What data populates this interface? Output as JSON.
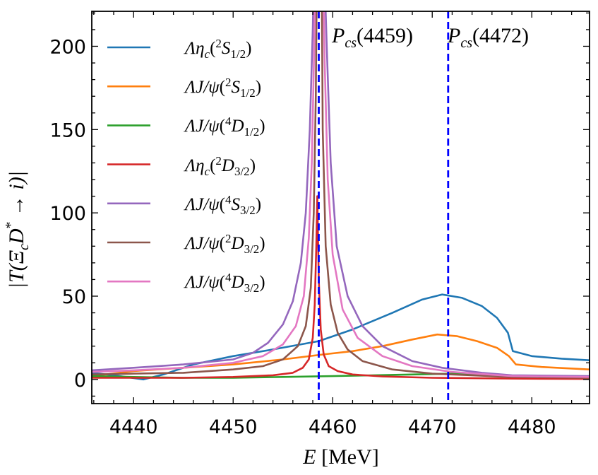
{
  "chart_data": {
    "type": "line",
    "xlabel": {
      "var": "E",
      "unit": "[MeV]"
    },
    "ylabel": {
      "pre": "|T(Ξ",
      "sub": "c",
      "mid": "D",
      "sup": "*",
      "post": " → i)|"
    },
    "xlim": [
      4435.8,
      4485.8
    ],
    "ylim": [
      -14.5,
      221
    ],
    "xticks": [
      4440,
      4450,
      4460,
      4470,
      4480
    ],
    "yticks": [
      0,
      50,
      100,
      150,
      200
    ],
    "xminor_step": 2,
    "yminor_step": 10,
    "legend_placement": "upper-left",
    "vlines": [
      {
        "x": 4458.6,
        "label": "P",
        "label_sub": "cs",
        "label_val": "(4459)",
        "color": "#0000ff"
      },
      {
        "x": 4471.6,
        "label": "P",
        "label_sub": "cs",
        "label_val": "(4472)",
        "color": "#0000ff"
      }
    ],
    "series": [
      {
        "name": "Λη_c(2S_1/2)",
        "base": "Λη",
        "base_sub": "c",
        "mult": "2",
        "L": "S",
        "J": "1/2",
        "color": "#1f77b4",
        "x": [
          4435.8,
          4438,
          4441,
          4443,
          4446,
          4450,
          4454,
          4458.6,
          4462,
          4466,
          4469,
          4471,
          4473,
          4475,
          4476.5,
          4477.6,
          4478.1,
          4480,
          4483,
          4485.8
        ],
        "y": [
          4,
          2.5,
          0,
          3,
          9,
          14,
          18,
          23,
          30,
          40,
          48,
          51,
          49,
          44,
          37,
          28,
          17,
          14,
          12.5,
          11.5
        ]
      },
      {
        "name": "ΛJ/ψ(2S_1/2)",
        "base": "ΛJ/ψ",
        "base_sub": "",
        "mult": "2",
        "L": "S",
        "J": "1/2",
        "color": "#ff7f0e",
        "x": [
          4435.8,
          4440,
          4445,
          4450,
          4455,
          4459,
          4462,
          4465,
          4468,
          4470.5,
          4472.5,
          4474.5,
          4476.5,
          4477.7,
          4478.4,
          4481,
          4485.8
        ],
        "y": [
          2,
          5,
          7,
          9,
          12,
          15,
          17,
          20,
          24,
          27,
          26,
          23,
          19,
          14,
          9,
          7.5,
          6
        ]
      },
      {
        "name": "ΛJ/ψ(4D_1/2)",
        "base": "ΛJ/ψ",
        "base_sub": "",
        "mult": "4",
        "L": "D",
        "J": "1/2",
        "color": "#2ca02c",
        "x": [
          4435.8,
          4440,
          4445,
          4450,
          4455,
          4460,
          4465,
          4468,
          4472,
          4475,
          4478,
          4482,
          4485.8
        ],
        "y": [
          2,
          1.5,
          1,
          1,
          1.5,
          2,
          2.6,
          3,
          3.5,
          3,
          2,
          1.3,
          1
        ]
      },
      {
        "name": "Λη_c(2D_3/2)",
        "base": "Λη",
        "base_sub": "c",
        "mult": "2",
        "L": "D",
        "J": "3/2",
        "color": "#d62728",
        "x": [
          4435.8,
          4445,
          4450,
          4454,
          4456,
          4457,
          4457.6,
          4458,
          4458.2,
          4458.35,
          4458.45,
          4458.6,
          4458.8,
          4459.1,
          4459.6,
          4460.5,
          4462,
          4465,
          4470,
          4478,
          4485.8
        ],
        "y": [
          1,
          1,
          1.5,
          2.5,
          4,
          7,
          12,
          25,
          45,
          80,
          110,
          60,
          30,
          15,
          8,
          5,
          3,
          1.8,
          1,
          0.5,
          0.3
        ]
      },
      {
        "name": "ΛJ/ψ(4S_3/2)",
        "base": "ΛJ/ψ",
        "base_sub": "",
        "mult": "4",
        "L": "S",
        "J": "3/2",
        "color": "#9467bd",
        "x": [
          4435.8,
          4440,
          4445,
          4450,
          4452,
          4453.5,
          4455,
          4456,
          4456.8,
          4457.3,
          4457.7,
          4458,
          4458.1,
          4459.2,
          4459.4,
          4459.8,
          4460.4,
          4461.5,
          4463,
          4465,
          4468,
          4471,
          4475,
          4478,
          4485.8
        ],
        "y": [
          5.5,
          7,
          9,
          12,
          16,
          22,
          33,
          47,
          70,
          100,
          150,
          210,
          240,
          240,
          200,
          130,
          80,
          50,
          32,
          20,
          11,
          7,
          4,
          2.5,
          2
        ]
      },
      {
        "name": "ΛJ/ψ(2D_3/2)",
        "base": "ΛJ/ψ",
        "base_sub": "",
        "mult": "2",
        "L": "D",
        "J": "3/2",
        "color": "#8c564b",
        "x": [
          4435.8,
          4440,
          4445,
          4450,
          4453,
          4455,
          4456.5,
          4457.3,
          4457.8,
          4458.1,
          4458.3,
          4458.4,
          4458.9,
          4459.0,
          4459.3,
          4459.8,
          4460.5,
          4461.5,
          4463,
          4466,
          4470,
          4478,
          4485.8
        ],
        "y": [
          3,
          3.5,
          4,
          6,
          8,
          12,
          20,
          32,
          55,
          100,
          170,
          240,
          240,
          150,
          80,
          45,
          28,
          18,
          11,
          6,
          3.5,
          1.5,
          1
        ]
      },
      {
        "name": "ΛJ/ψ(4D_3/2)",
        "base": "ΛJ/ψ",
        "base_sub": "",
        "mult": "4",
        "L": "D",
        "J": "3/2",
        "color": "#e377c2",
        "x": [
          4435.8,
          4440,
          4445,
          4450,
          4453,
          4455,
          4456.3,
          4457.1,
          4457.6,
          4457.9,
          4458.15,
          4458.25,
          4459.05,
          4459.2,
          4459.5,
          4460,
          4461,
          4462.5,
          4465,
          4468,
          4472,
          4478,
          4485.8
        ],
        "y": [
          4.5,
          5.5,
          7,
          10,
          14,
          21,
          32,
          50,
          85,
          130,
          200,
          240,
          240,
          190,
          120,
          75,
          42,
          25,
          14,
          8,
          4.5,
          2,
          1.5
        ]
      }
    ]
  }
}
